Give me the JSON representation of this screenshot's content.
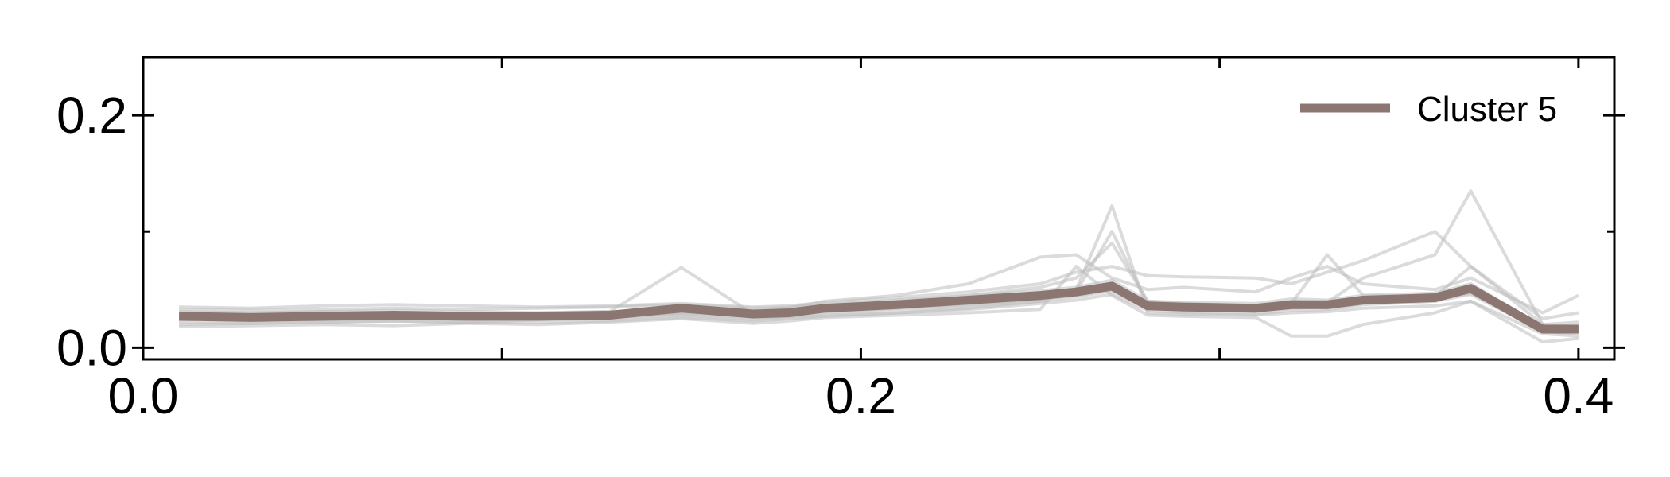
{
  "chart_data": {
    "type": "line",
    "xlim": [
      0.0,
      0.41
    ],
    "ylim": [
      -0.01,
      0.25
    ],
    "x_ticks": [
      0.0,
      0.2,
      0.4
    ],
    "x_tick_labels": [
      "0.0",
      "0.2",
      "0.4"
    ],
    "x_minor_ticks": [
      0.1,
      0.3
    ],
    "y_ticks": [
      0.0,
      0.2
    ],
    "y_tick_labels": [
      "0.0",
      "0.2"
    ],
    "y_minor_ticks": [
      0.1
    ],
    "grid": false,
    "legend": {
      "position": "top-right",
      "entries": [
        "Cluster 5"
      ]
    },
    "colors": {
      "mean": "#8c7672",
      "members": "#bdbdbd",
      "axis": "#000000"
    },
    "x": [
      0.01,
      0.03,
      0.05,
      0.07,
      0.09,
      0.11,
      0.13,
      0.15,
      0.17,
      0.18,
      0.19,
      0.21,
      0.23,
      0.25,
      0.26,
      0.27,
      0.28,
      0.29,
      0.31,
      0.32,
      0.33,
      0.34,
      0.36,
      0.37,
      0.39,
      0.4
    ],
    "series": [
      {
        "name": "Cluster 5",
        "role": "mean",
        "values": [
          0.027,
          0.026,
          0.027,
          0.028,
          0.027,
          0.027,
          0.028,
          0.034,
          0.029,
          0.03,
          0.034,
          0.037,
          0.041,
          0.045,
          0.048,
          0.053,
          0.036,
          0.035,
          0.034,
          0.037,
          0.037,
          0.041,
          0.043,
          0.051,
          0.016,
          0.016
        ]
      },
      {
        "role": "member",
        "values": [
          0.03,
          0.029,
          0.031,
          0.03,
          0.029,
          0.03,
          0.031,
          0.069,
          0.029,
          0.033,
          0.035,
          0.04,
          0.045,
          0.052,
          0.06,
          0.09,
          0.04,
          0.038,
          0.036,
          0.04,
          0.039,
          0.06,
          0.08,
          0.135,
          0.02,
          0.018
        ]
      },
      {
        "role": "member",
        "values": [
          0.022,
          0.021,
          0.022,
          0.023,
          0.022,
          0.024,
          0.025,
          0.028,
          0.024,
          0.026,
          0.028,
          0.03,
          0.034,
          0.04,
          0.05,
          0.122,
          0.03,
          0.029,
          0.028,
          0.03,
          0.031,
          0.034,
          0.036,
          0.04,
          0.012,
          0.01
        ]
      },
      {
        "role": "member",
        "values": [
          0.035,
          0.034,
          0.036,
          0.037,
          0.036,
          0.035,
          0.036,
          0.038,
          0.035,
          0.036,
          0.039,
          0.043,
          0.048,
          0.055,
          0.065,
          0.07,
          0.062,
          0.061,
          0.06,
          0.055,
          0.065,
          0.075,
          0.1,
          0.07,
          0.025,
          0.03
        ]
      },
      {
        "role": "member",
        "values": [
          0.018,
          0.019,
          0.02,
          0.019,
          0.021,
          0.02,
          0.022,
          0.025,
          0.021,
          0.023,
          0.026,
          0.028,
          0.03,
          0.033,
          0.07,
          0.045,
          0.028,
          0.027,
          0.026,
          0.01,
          0.01,
          0.02,
          0.03,
          0.04,
          0.005,
          0.008
        ]
      },
      {
        "role": "member",
        "values": [
          0.028,
          0.027,
          0.029,
          0.03,
          0.028,
          0.029,
          0.03,
          0.035,
          0.032,
          0.034,
          0.04,
          0.045,
          0.055,
          0.078,
          0.08,
          0.06,
          0.05,
          0.052,
          0.048,
          0.06,
          0.07,
          0.055,
          0.05,
          0.06,
          0.03,
          0.045
        ]
      },
      {
        "role": "member",
        "values": [
          0.025,
          0.024,
          0.025,
          0.026,
          0.025,
          0.026,
          0.027,
          0.03,
          0.028,
          0.029,
          0.031,
          0.034,
          0.037,
          0.042,
          0.045,
          0.05,
          0.035,
          0.033,
          0.031,
          0.036,
          0.034,
          0.038,
          0.042,
          0.048,
          0.015,
          0.014
        ]
      },
      {
        "role": "member",
        "values": [
          0.031,
          0.03,
          0.031,
          0.032,
          0.031,
          0.03,
          0.031,
          0.033,
          0.03,
          0.031,
          0.034,
          0.036,
          0.04,
          0.044,
          0.048,
          0.1,
          0.038,
          0.036,
          0.035,
          0.038,
          0.08,
          0.045,
          0.044,
          0.07,
          0.02,
          0.022
        ]
      },
      {
        "role": "member",
        "values": [
          0.02,
          0.021,
          0.022,
          0.023,
          0.022,
          0.022,
          0.023,
          0.026,
          0.023,
          0.025,
          0.027,
          0.03,
          0.033,
          0.038,
          0.041,
          0.046,
          0.032,
          0.03,
          0.029,
          0.032,
          0.033,
          0.037,
          0.04,
          0.046,
          0.014,
          0.012
        ]
      },
      {
        "role": "member",
        "values": [
          0.033,
          0.032,
          0.033,
          0.034,
          0.033,
          0.034,
          0.035,
          0.037,
          0.034,
          0.035,
          0.037,
          0.041,
          0.045,
          0.049,
          0.052,
          0.058,
          0.04,
          0.039,
          0.038,
          0.042,
          0.041,
          0.045,
          0.047,
          0.055,
          0.018,
          0.019
        ]
      },
      {
        "role": "member",
        "values": [
          0.024,
          0.025,
          0.024,
          0.025,
          0.026,
          0.025,
          0.026,
          0.029,
          0.026,
          0.027,
          0.03,
          0.033,
          0.036,
          0.04,
          0.044,
          0.049,
          0.034,
          0.033,
          0.032,
          0.034,
          0.035,
          0.039,
          0.041,
          0.047,
          0.016,
          0.015
        ]
      },
      {
        "role": "member",
        "values": [
          0.029,
          0.028,
          0.029,
          0.028,
          0.029,
          0.028,
          0.029,
          0.032,
          0.029,
          0.03,
          0.033,
          0.036,
          0.039,
          0.043,
          0.046,
          0.052,
          0.037,
          0.036,
          0.035,
          0.038,
          0.038,
          0.042,
          0.045,
          0.052,
          0.017,
          0.017
        ]
      },
      {
        "role": "member",
        "values": [
          0.026,
          0.027,
          0.026,
          0.027,
          0.026,
          0.027,
          0.028,
          0.031,
          0.028,
          0.029,
          0.032,
          0.035,
          0.038,
          0.042,
          0.047,
          0.055,
          0.036,
          0.034,
          0.033,
          0.036,
          0.036,
          0.04,
          0.043,
          0.05,
          0.016,
          0.016
        ]
      }
    ]
  }
}
